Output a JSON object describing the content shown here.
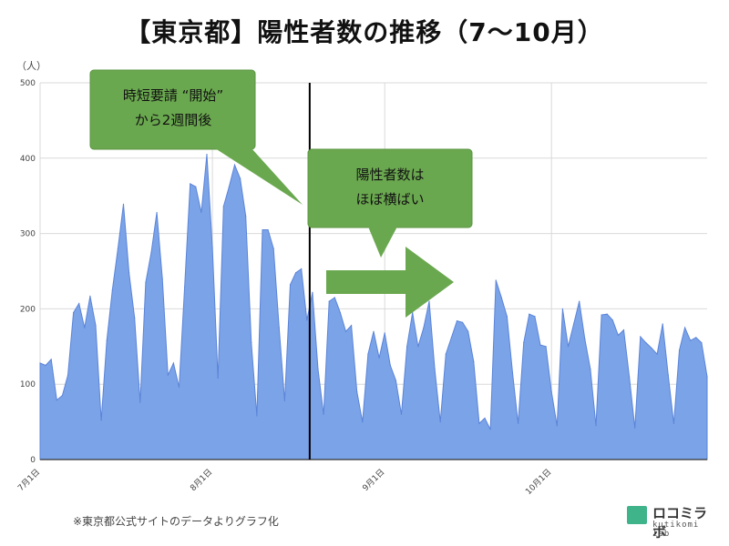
{
  "title": "【東京都】陽性者数の推移（7〜10月）",
  "y_unit": "（人）",
  "footnote": "※東京都公式サイトのデータよりグラフ化",
  "logo": {
    "name": "ロコミラボ",
    "sub": "kutikomi lab"
  },
  "colors": {
    "area": "#7ba3e8",
    "line": "#5b84d8",
    "callout": "#6aa84f",
    "arrow": "#6aa84f",
    "marker": "#000000"
  },
  "callouts": [
    {
      "line1": "時短要請 “開始”",
      "line2": "から2週間後"
    },
    {
      "line1": "陽性者数は",
      "line2": "ほぼ横ばい"
    }
  ],
  "chart_data": {
    "type": "area",
    "title": "",
    "ylabel": "（人）",
    "ylim": [
      0,
      500
    ],
    "yticks": [
      0,
      100,
      200,
      300,
      400,
      500
    ],
    "xtick_labels": [
      "7月1日",
      "8月1日",
      "9月1日",
      "10月1日"
    ],
    "xtick_index": [
      0,
      31,
      62,
      92
    ],
    "marker_index": 48.5,
    "grid": true,
    "series": [
      {
        "values": [
          128,
          125,
          133,
          79,
          85,
          112,
          195,
          207,
          175,
          217,
          178,
          52,
          158,
          225,
          280,
          339,
          248,
          188,
          76,
          235,
          275,
          328,
          240,
          112,
          128,
          96,
          229,
          366,
          362,
          328,
          405,
          281,
          108,
          336,
          362,
          391,
          373,
          323,
          155,
          58,
          305,
          305,
          280,
          175,
          78,
          232,
          248,
          253,
          185,
          222,
          120,
          60,
          210,
          215,
          195,
          170,
          178,
          90,
          50,
          140,
          170,
          135,
          168,
          125,
          105,
          60,
          150,
          195,
          150,
          175,
          210,
          120,
          50,
          140,
          162,
          184,
          182,
          170,
          130,
          48,
          55,
          40,
          238,
          215,
          190,
          115,
          48,
          155,
          193,
          190,
          152,
          150,
          90,
          45,
          200,
          150,
          180,
          210,
          160,
          120,
          45,
          192,
          193,
          185,
          165,
          172,
          110,
          42,
          163,
          155,
          148,
          140,
          180,
          112,
          48,
          145,
          175,
          158,
          162,
          155,
          110
        ]
      }
    ]
  }
}
